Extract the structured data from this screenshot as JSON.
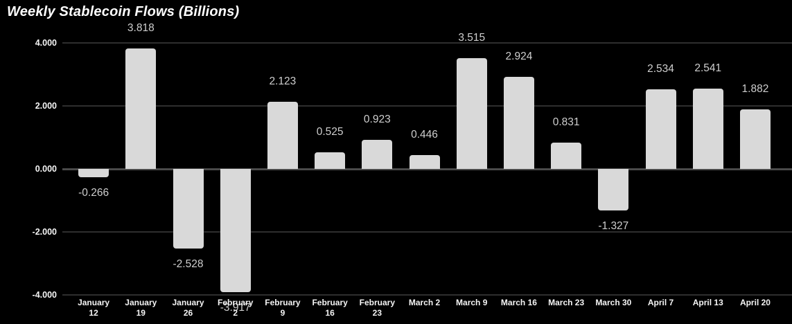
{
  "title": "Weekly Stablecoin Flows (Billions)",
  "colors": {
    "background": "#000000",
    "bar": "#d9d9d9",
    "value_label": "#cfcfcf",
    "axis_label": "#f5f5f5",
    "title": "#ffffff",
    "gridline": "#2e2e2e",
    "zero_line": "#4a4a4a"
  },
  "chart_data": {
    "type": "bar",
    "title": "Weekly Stablecoin Flows (Billions)",
    "xlabel": "",
    "ylabel": "",
    "ylim": [
      -4.0,
      4.0
    ],
    "grid": true,
    "legend": false,
    "categories": [
      "January 12",
      "January 19",
      "January 26",
      "February 2",
      "February 9",
      "February 16",
      "February 23",
      "March 2",
      "March 9",
      "March 16",
      "March 23",
      "March 30",
      "April 7",
      "April 13",
      "April 20"
    ],
    "category_lines": [
      [
        "January",
        "12"
      ],
      [
        "January",
        "19"
      ],
      [
        "January",
        "26"
      ],
      [
        "February",
        "2"
      ],
      [
        "February",
        "9"
      ],
      [
        "February",
        "16"
      ],
      [
        "February",
        "23"
      ],
      [
        "March 2"
      ],
      [
        "March 9"
      ],
      [
        "March 16"
      ],
      [
        "March 23"
      ],
      [
        "March 30"
      ],
      [
        "April 7"
      ],
      [
        "April 13"
      ],
      [
        "April 20"
      ]
    ],
    "values": [
      -0.266,
      3.818,
      -2.528,
      -3.917,
      2.123,
      0.525,
      0.923,
      0.446,
      3.515,
      2.924,
      0.831,
      -1.327,
      2.534,
      2.541,
      1.882
    ],
    "value_labels": [
      "-0.266",
      "3.818",
      "-2.528",
      "-3.917",
      "2.123",
      "0.525",
      "0.923",
      "0.446",
      "3.515",
      "2.924",
      "0.831",
      "-1.327",
      "2.534",
      "2.541",
      "1.882"
    ],
    "yticks": [
      4.0,
      2.0,
      0.0,
      -2.0,
      -4.0
    ],
    "ytick_labels": [
      "4.000",
      "2.000",
      "0.000",
      "-2.000",
      "-4.000"
    ]
  }
}
